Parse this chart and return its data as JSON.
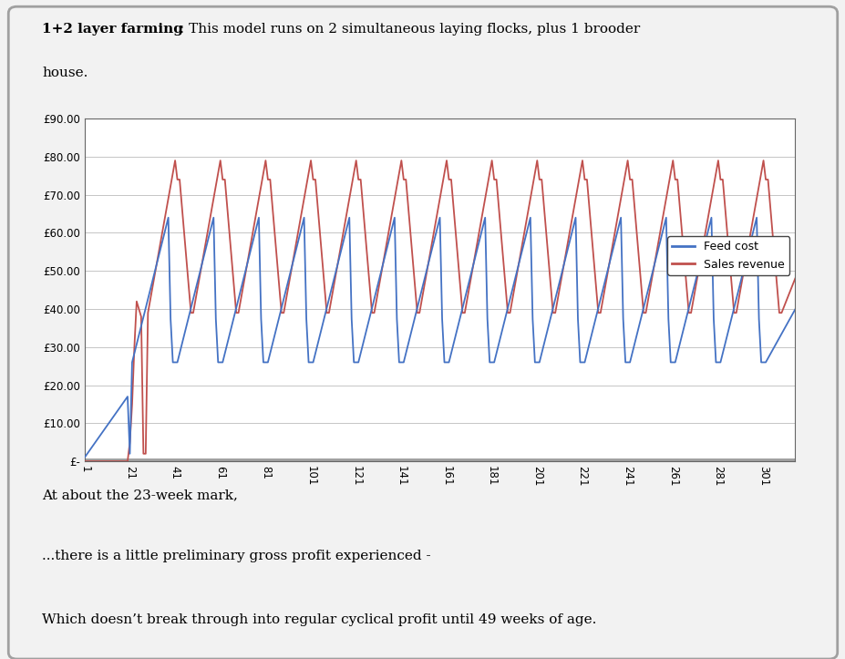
{
  "title_bold": "1+2 layer farming",
  "title_rest": ": This model runs on 2 simultaneous laying flocks, plus 1 brooder\nhouse.",
  "footnote1": "At about the 23-week mark,",
  "footnote2": "...there is a little preliminary gross profit experienced -",
  "footnote3": "Which doesn’t break through into regular cyclical profit until 49 weeks of age.",
  "feed_color": "#4472C4",
  "sales_color": "#C0504D",
  "zero_line_color": "#A0A0A0",
  "bg_color": "#F2F2F2",
  "chart_bg": "#FFFFFF",
  "border_color": "#A0A0A0",
  "ylim": [
    0,
    90
  ],
  "xlim": [
    1,
    315
  ],
  "xticks": [
    1,
    21,
    41,
    61,
    81,
    101,
    121,
    141,
    161,
    181,
    201,
    221,
    241,
    261,
    281,
    301
  ],
  "ytick_labels": [
    "£-",
    "£10.00",
    "£20.00",
    "£30.00",
    "£40.00",
    "£50.00",
    "£60.00",
    "£70.00",
    "£80.00",
    "£90.00"
  ],
  "ytick_values": [
    0,
    10,
    20,
    30,
    40,
    50,
    60,
    70,
    80,
    90
  ],
  "legend_feed": "Feed cost",
  "legend_sales": "Sales revenue"
}
